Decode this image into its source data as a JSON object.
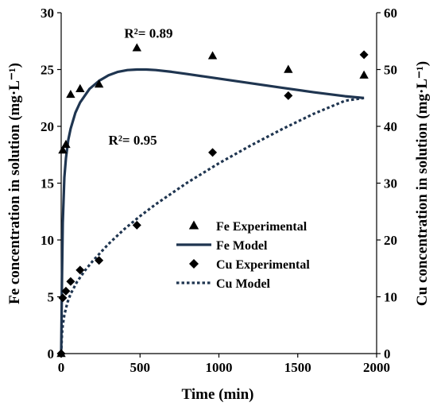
{
  "chart_data": {
    "type": "line",
    "xlabel": "Time (min)",
    "ylabel_left": "Fe concentration in solution (mg·L⁻¹)",
    "ylabel_right": "Cu concentration in solution (mg·L⁻¹)",
    "xlim": [
      0,
      2000
    ],
    "ylim_left": [
      0,
      30
    ],
    "ylim_right": [
      0,
      60
    ],
    "x_ticks": [
      0,
      500,
      1000,
      1500,
      2000
    ],
    "y_left_ticks": [
      0,
      5,
      10,
      15,
      20,
      25,
      30
    ],
    "y_right_ticks": [
      0,
      10,
      20,
      30,
      40,
      50,
      60
    ],
    "grid": false,
    "legend_position": "center-right",
    "series": [
      {
        "name": "Fe Experimental",
        "axis": "left",
        "style": "triangle",
        "color": "#000000",
        "x": [
          0,
          10,
          30,
          60,
          120,
          240,
          480,
          960,
          1440,
          1920
        ],
        "y": [
          0,
          17.9,
          18.4,
          22.8,
          23.3,
          23.7,
          26.9,
          26.2,
          25.0,
          24.5
        ]
      },
      {
        "name": "Fe Model",
        "axis": "left",
        "style": "solid-line",
        "color": "#1f3550",
        "x": [
          0,
          5,
          10,
          20,
          30,
          45,
          60,
          90,
          120,
          180,
          240,
          300,
          360,
          420,
          480,
          540,
          600,
          700,
          800,
          900,
          1000,
          1200,
          1400,
          1600,
          1800,
          1920
        ],
        "y": [
          0,
          6.5,
          11.5,
          15.5,
          17.2,
          18.8,
          19.8,
          21.2,
          22.1,
          23.3,
          24.0,
          24.5,
          24.8,
          24.95,
          25.0,
          25.0,
          24.95,
          24.8,
          24.6,
          24.4,
          24.2,
          23.8,
          23.4,
          23.0,
          22.65,
          22.5
        ]
      },
      {
        "name": "Cu Experimental",
        "axis": "right",
        "style": "diamond",
        "color": "#000000",
        "x": [
          0,
          10,
          30,
          60,
          120,
          240,
          480,
          960,
          1440,
          1920
        ],
        "y": [
          0,
          9.8,
          11.0,
          12.7,
          14.7,
          16.4,
          22.6,
          35.4,
          45.4,
          52.6
        ]
      },
      {
        "name": "Cu Model",
        "axis": "right",
        "style": "dashed-line",
        "color": "#1f3550",
        "x": [
          0,
          5,
          10,
          20,
          40,
          60,
          100,
          150,
          200,
          300,
          400,
          500,
          600,
          800,
          1000,
          1200,
          1400,
          1600,
          1800,
          1920
        ],
        "y": [
          0,
          3.5,
          5.0,
          6.8,
          9.0,
          10.5,
          12.6,
          14.6,
          16.3,
          19.3,
          21.9,
          24.2,
          26.3,
          30.1,
          33.5,
          36.6,
          39.5,
          42.2,
          44.5,
          45.0
        ]
      }
    ],
    "annotations": [
      {
        "text": "R²= 0.89",
        "x": 400,
        "y": 27.8,
        "axis": "left"
      },
      {
        "text": "R²= 0.95",
        "x": 300,
        "y": 18.4,
        "axis": "left"
      }
    ]
  }
}
